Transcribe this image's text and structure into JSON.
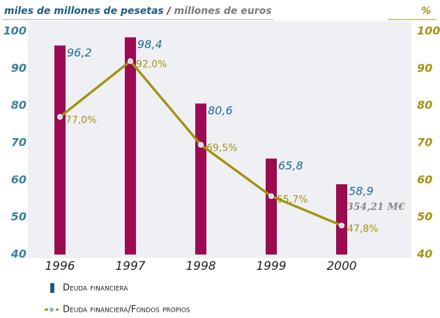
{
  "chart_data": {
    "type": "bar_line",
    "title": "miles de millones de pesetas",
    "title_separator": "/",
    "subtitle": "millones de euros",
    "y2label": "%",
    "categories": [
      "1996",
      "1997",
      "1998",
      "1999",
      "2000"
    ],
    "series": [
      {
        "name": "Deuda financiera",
        "type": "bar",
        "color": "#9c0a52",
        "legend_color": "#1f5a85",
        "values": [
          96.2,
          98.4,
          80.6,
          65.8,
          58.9
        ],
        "value_labels": [
          "96,2",
          "98,4",
          "80,6",
          "65,8",
          "58,9"
        ]
      },
      {
        "name": "Deuda financiera/Fondos propios",
        "type": "line",
        "axis": "y2",
        "color": "#a39312",
        "values": [
          77.0,
          92.0,
          69.5,
          55.7,
          47.8
        ],
        "value_labels": [
          "77,0%",
          "92,0%",
          "69,5%",
          "55,7%",
          "47,8%"
        ]
      }
    ],
    "annotations": [
      "354,21 M€"
    ],
    "ylim": [
      40,
      100
    ],
    "yticks": [
      40,
      50,
      60,
      70,
      80,
      90,
      100
    ],
    "y2lim": [
      40,
      100
    ],
    "y2ticks": [
      40,
      50,
      60,
      70,
      80,
      90,
      100
    ]
  }
}
